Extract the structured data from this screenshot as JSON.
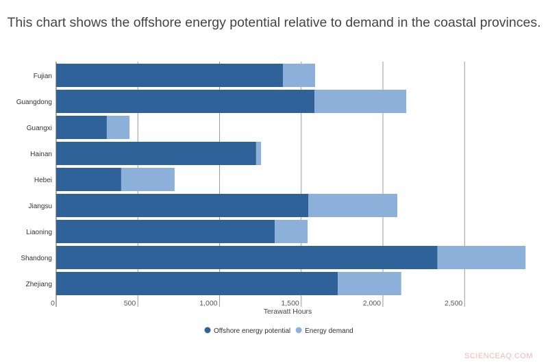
{
  "title": "This chart shows the offshore energy potential relative to demand in the coastal provinces.",
  "watermark": "SCIENCEAQ.COM",
  "chart_data": {
    "type": "bar",
    "orientation": "horizontal",
    "stacked": true,
    "categories": [
      "Fujian",
      "Guangdong",
      "Guangxi",
      "Hainan",
      "Hebei",
      "Jiangsu",
      "Liaoning",
      "Shandong",
      "Zhejiang"
    ],
    "series": [
      {
        "name": "Offshore energy potential",
        "color": "#2f6299",
        "values": [
          1388,
          1581,
          310,
          1224,
          398,
          1543,
          1338,
          2334,
          1724
        ]
      },
      {
        "name": "Energy demand",
        "color": "#8cb0da",
        "values": [
          197,
          562,
          139,
          30,
          327,
          545,
          201,
          539,
          388
        ]
      }
    ],
    "xlabel": "Terawatt Hours",
    "ylabel": "",
    "xlim": [
      0,
      2900
    ],
    "xticks": [
      0,
      500,
      1000,
      1500,
      2000,
      2500
    ],
    "xtick_labels": [
      "0",
      "500",
      "1,000",
      "1,500",
      "2,000",
      "2,500"
    ],
    "grid": true,
    "legend": "bottom"
  }
}
